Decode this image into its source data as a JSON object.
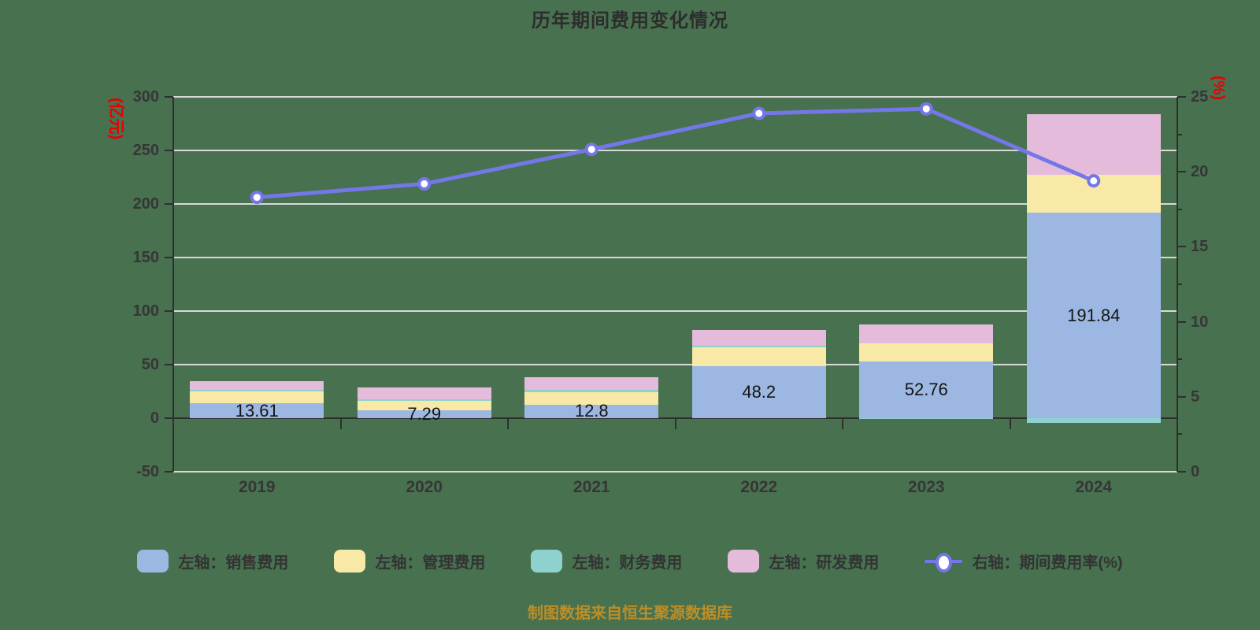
{
  "title": "历年期间费用变化情况",
  "footer": "制图数据来自恒生聚源数据库",
  "chart_data": {
    "type": "bar",
    "subtype": "stacked-bar-with-line-combo",
    "title": "历年期间费用变化情况",
    "categories": [
      "2019",
      "2020",
      "2021",
      "2022",
      "2023",
      "2024"
    ],
    "left_axis": {
      "unit": "(亿元)",
      "min": -50,
      "max": 300,
      "step": 50
    },
    "right_axis": {
      "unit": "(%)",
      "min": 0,
      "max": 25,
      "step": 5,
      "minor_step": 2.5
    },
    "grid": "horizontal",
    "legend_position": "bottom",
    "series": [
      {
        "key": "sales",
        "kind": "bar",
        "axis": "left",
        "name": "左轴：销售费用",
        "color": "#9cb8e2",
        "values": [
          13.61,
          7.29,
          12.8,
          48.2,
          52.76,
          191.84
        ]
      },
      {
        "key": "admin",
        "kind": "bar",
        "axis": "left",
        "name": "左轴：管理费用",
        "color": "#f8e9a6",
        "values": [
          11.2,
          8.8,
          11.6,
          18.3,
          17.1,
          35.7
        ]
      },
      {
        "key": "finance",
        "kind": "bar",
        "axis": "left",
        "name": "左轴：财务费用",
        "color": "#8ed1ce",
        "values": [
          2.0,
          1.5,
          1.8,
          1.5,
          -0.5,
          -4.4
        ]
      },
      {
        "key": "rnd",
        "kind": "bar",
        "axis": "left",
        "name": "左轴：研发费用",
        "color": "#e4bbda",
        "values": [
          7.4,
          11.0,
          11.8,
          14.6,
          17.8,
          56.2
        ]
      },
      {
        "key": "rate",
        "kind": "line",
        "axis": "right",
        "name": "右轴：期间费用率(%)",
        "color": "#7477e8",
        "values": [
          18.3,
          19.2,
          21.5,
          23.9,
          24.2,
          19.4
        ]
      }
    ],
    "bar_labels": [
      "13.61",
      "7.29",
      "12.8",
      "48.2",
      "52.76",
      "191.84"
    ]
  },
  "colors": {
    "background": "#487150",
    "axis": "#2f2f2f",
    "grid": "#d9d9d9",
    "text": "#363636",
    "axis_unit": "#e60000",
    "footer": "#bd8e26"
  }
}
